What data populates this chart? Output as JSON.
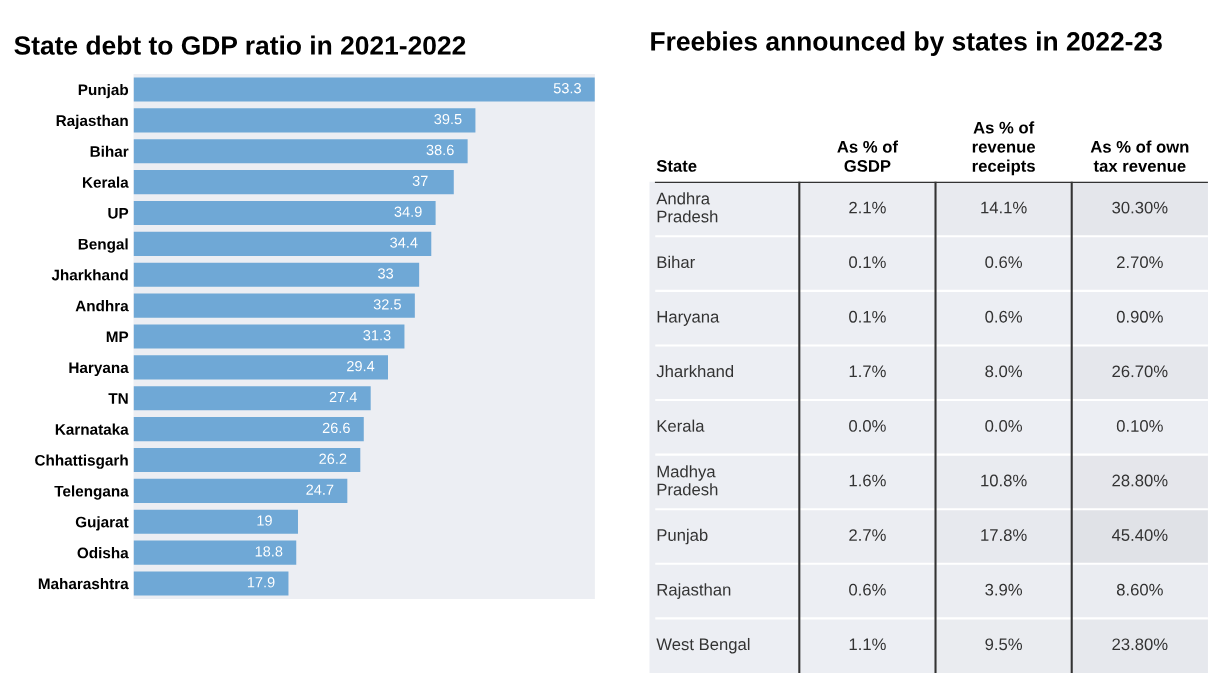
{
  "chart_data": [
    {
      "type": "bar",
      "orientation": "horizontal",
      "title": "State debt to GDP ratio in 2021-2022",
      "categories": [
        "Punjab",
        "Rajasthan",
        "Bihar",
        "Kerala",
        "UP",
        "Bengal",
        "Jharkhand",
        "Andhra",
        "MP",
        "Haryana",
        "TN",
        "Karnataka",
        "Chhattisgarh",
        "Telengana",
        "Gujarat",
        "Odisha",
        "Maharashtra"
      ],
      "values": [
        53.3,
        39.5,
        38.6,
        37,
        34.9,
        34.4,
        33,
        32.5,
        31.3,
        29.4,
        27.4,
        26.6,
        26.2,
        24.7,
        19,
        18.8,
        17.9
      ],
      "color": "#6fa8d6",
      "xlim": [
        0,
        53.3
      ],
      "data_labels": true,
      "tick_labels": "y",
      "grid": false,
      "legend": false
    },
    {
      "type": "heatmap",
      "title": "Freebies announced by states in 2022-23",
      "ylabel": "State",
      "categories": [
        "As % of\nGSDP",
        "As % of\nrevenue\nreceipts",
        "As % of own\ntax revenue"
      ],
      "y_categories": [
        "Andhra\nPradesh",
        "Bihar",
        "Haryana",
        "Jharkhand",
        "Kerala",
        "Madhya\nPradesh",
        "Punjab",
        "Rajasthan",
        "West Bengal"
      ],
      "cells": [
        [
          2.1,
          14.1,
          30.3
        ],
        [
          0.1,
          0.6,
          2.7
        ],
        [
          0.1,
          0.6,
          0.9
        ],
        [
          1.7,
          8.0,
          26.7
        ],
        [
          0.0,
          0.0,
          0.1
        ],
        [
          1.6,
          10.8,
          28.8
        ],
        [
          2.7,
          17.8,
          45.4
        ],
        [
          0.6,
          3.9,
          8.6
        ],
        [
          1.1,
          9.5,
          23.8
        ]
      ],
      "cell_labels": [
        [
          "2.1%",
          "14.1%",
          "30.30%"
        ],
        [
          "0.1%",
          "0.6%",
          "2.70%"
        ],
        [
          "0.1%",
          "0.6%",
          "0.90%"
        ],
        [
          "1.7%",
          "8.0%",
          "26.70%"
        ],
        [
          "0.0%",
          "0.0%",
          "0.10%"
        ],
        [
          "1.6%",
          "10.8%",
          "28.80%"
        ],
        [
          "2.7%",
          "17.8%",
          "45.40%"
        ],
        [
          "0.6%",
          "3.9%",
          "8.60%"
        ],
        [
          "1.1%",
          "9.5%",
          "23.80%"
        ]
      ],
      "color": "#eceef3",
      "data_labels": true,
      "grid": false,
      "legend": false
    }
  ]
}
